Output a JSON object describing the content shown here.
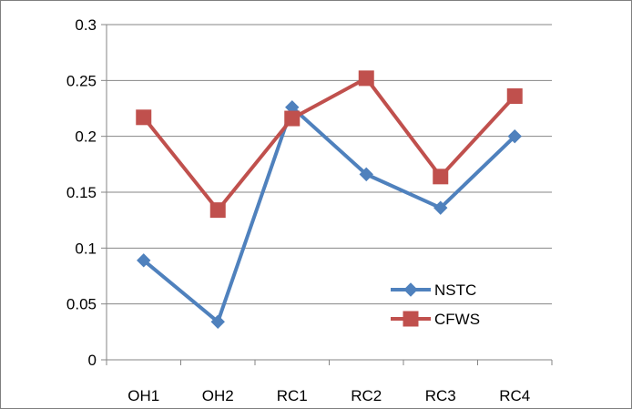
{
  "chart_data": {
    "type": "line",
    "title": "",
    "xlabel": "",
    "ylabel": "",
    "categories": [
      "OH1",
      "OH2",
      "RC1",
      "RC2",
      "RC3",
      "RC4"
    ],
    "ylim": [
      0,
      0.3
    ],
    "yticks": [
      0,
      0.05,
      0.1,
      0.15,
      0.2,
      0.25,
      0.3
    ],
    "ytick_labels": [
      "0",
      "0.05",
      "0.1",
      "0.15",
      "0.2",
      "0.25",
      "0.3"
    ],
    "grid": true,
    "legend_position": "inside-lower-right",
    "series": [
      {
        "name": "NSTC",
        "values": [
          0.089,
          0.034,
          0.226,
          0.166,
          0.136,
          0.2
        ],
        "color": "#4F81BD",
        "marker": "diamond"
      },
      {
        "name": "CFWS",
        "values": [
          0.217,
          0.134,
          0.216,
          0.252,
          0.164,
          0.236
        ],
        "color": "#C0504D",
        "marker": "square"
      }
    ]
  }
}
